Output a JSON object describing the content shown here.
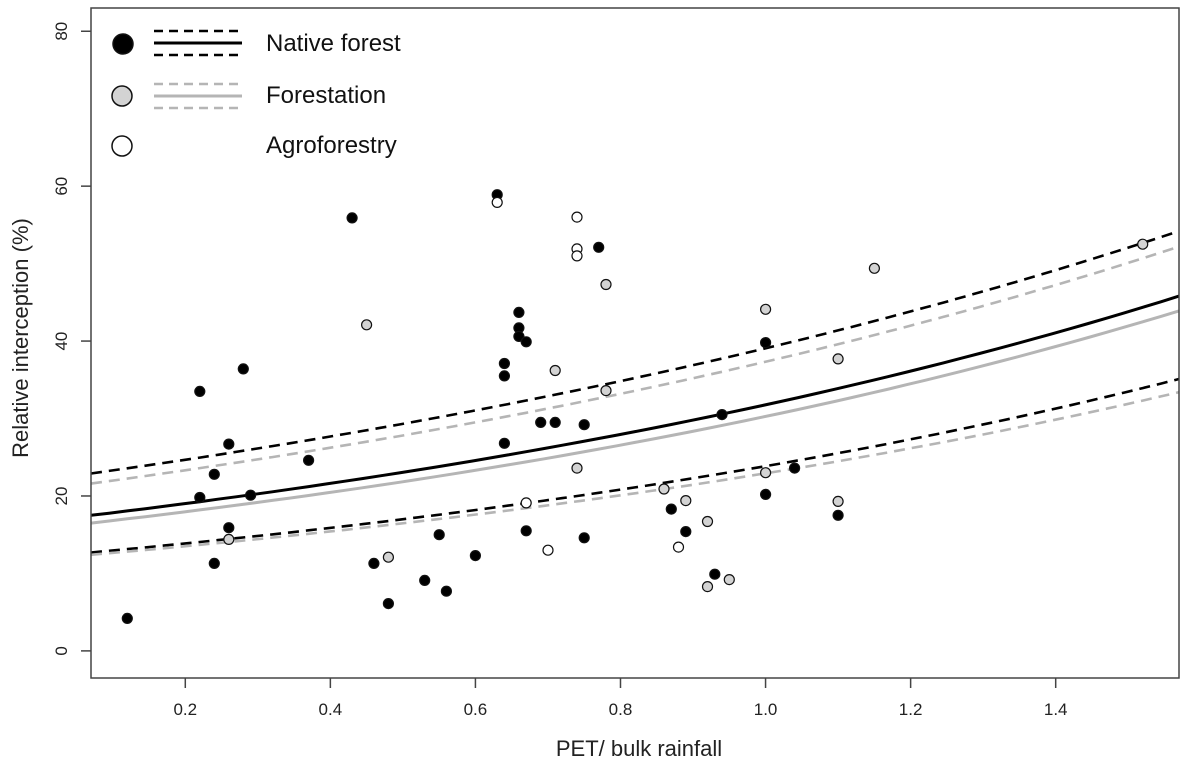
{
  "chart_data": {
    "type": "scatter",
    "title": "",
    "xlabel": "PET/ bulk rainfall",
    "ylabel": "Relative interception (%)",
    "xlim": [
      0.07,
      1.57
    ],
    "ylim": [
      -3.5,
      83
    ],
    "xticks": [
      0.2,
      0.4,
      0.6,
      0.8,
      1.0,
      1.2,
      1.4
    ],
    "xtick_labels": [
      "0.2",
      "0.4",
      "0.6",
      "0.8",
      "1.0",
      "1.2",
      "1.4"
    ],
    "yticks": [
      0,
      20,
      40,
      60,
      80
    ],
    "ytick_labels": [
      "0",
      "20",
      "40",
      "60",
      "80"
    ],
    "grid": false,
    "legend_position": "top-left",
    "colors": {
      "native": "#000000",
      "forestation_fill": "#d3d3d3",
      "forestation_line": "#b5b5b5",
      "agroforestry_fill": "#ffffff",
      "stroke": "#111111",
      "frame": "#444444"
    },
    "legend": [
      {
        "name": "Native forest",
        "marker": "filled-black",
        "lines": true,
        "line_color": "#000000"
      },
      {
        "name": "Forestation",
        "marker": "filled-grey",
        "lines": true,
        "line_color": "#b5b5b5"
      },
      {
        "name": "Agroforestry",
        "marker": "open-white",
        "lines": false
      }
    ],
    "series": [
      {
        "name": "Native forest",
        "points": [
          [
            0.12,
            4.2
          ],
          [
            0.22,
            33.5
          ],
          [
            0.22,
            19.8
          ],
          [
            0.24,
            22.8
          ],
          [
            0.24,
            11.3
          ],
          [
            0.26,
            26.7
          ],
          [
            0.26,
            15.9
          ],
          [
            0.28,
            36.4
          ],
          [
            0.29,
            20.1
          ],
          [
            0.37,
            24.6
          ],
          [
            0.43,
            55.9
          ],
          [
            0.46,
            11.3
          ],
          [
            0.48,
            6.1
          ],
          [
            0.53,
            9.1
          ],
          [
            0.55,
            15.0
          ],
          [
            0.56,
            7.7
          ],
          [
            0.6,
            12.3
          ],
          [
            0.63,
            58.9
          ],
          [
            0.64,
            37.1
          ],
          [
            0.64,
            35.5
          ],
          [
            0.64,
            26.8
          ],
          [
            0.66,
            43.7
          ],
          [
            0.66,
            41.7
          ],
          [
            0.66,
            40.6
          ],
          [
            0.67,
            39.9
          ],
          [
            0.67,
            15.5
          ],
          [
            0.69,
            29.5
          ],
          [
            0.71,
            29.5
          ],
          [
            0.75,
            29.2
          ],
          [
            0.75,
            14.6
          ],
          [
            0.77,
            52.1
          ],
          [
            0.87,
            18.3
          ],
          [
            0.89,
            15.4
          ],
          [
            0.93,
            9.9
          ],
          [
            0.94,
            30.5
          ],
          [
            1.0,
            39.8
          ],
          [
            1.0,
            20.2
          ],
          [
            1.04,
            23.6
          ],
          [
            1.1,
            17.5
          ]
        ]
      },
      {
        "name": "Forestation",
        "points": [
          [
            0.26,
            14.4
          ],
          [
            0.45,
            42.1
          ],
          [
            0.48,
            12.1
          ],
          [
            0.71,
            36.2
          ],
          [
            0.74,
            23.6
          ],
          [
            0.78,
            47.3
          ],
          [
            0.78,
            33.6
          ],
          [
            0.86,
            20.9
          ],
          [
            0.89,
            19.4
          ],
          [
            0.92,
            16.7
          ],
          [
            0.92,
            8.3
          ],
          [
            0.95,
            9.2
          ],
          [
            1.0,
            44.1
          ],
          [
            1.0,
            23.0
          ],
          [
            1.1,
            37.7
          ],
          [
            1.1,
            19.3
          ],
          [
            1.15,
            49.4
          ],
          [
            1.52,
            52.5
          ]
        ]
      },
      {
        "name": "Agroforestry",
        "points": [
          [
            0.63,
            57.9
          ],
          [
            0.67,
            19.1
          ],
          [
            0.7,
            13.0
          ],
          [
            0.74,
            56.0
          ],
          [
            0.74,
            51.9
          ],
          [
            0.74,
            51.0
          ],
          [
            0.88,
            13.4
          ]
        ]
      }
    ],
    "fits": [
      {
        "name": "Native forest",
        "role": "fit",
        "style": "solid",
        "color": "#000000",
        "x": [
          0.07,
          1.57
        ],
        "y": [
          17.5,
          45.8
        ]
      },
      {
        "name": "Native forest",
        "role": "upper",
        "style": "dashed",
        "color": "#000000",
        "x": [
          0.07,
          1.57
        ],
        "y": [
          22.9,
          54.2
        ]
      },
      {
        "name": "Native forest",
        "role": "lower",
        "style": "dashed",
        "color": "#000000",
        "x": [
          0.07,
          1.57
        ],
        "y": [
          12.7,
          35.1
        ]
      },
      {
        "name": "Forestation",
        "role": "fit",
        "style": "solid",
        "color": "#b5b5b5",
        "x": [
          0.07,
          1.57
        ],
        "y": [
          16.5,
          43.9
        ]
      },
      {
        "name": "Forestation",
        "role": "upper",
        "style": "dashed",
        "color": "#b5b5b5",
        "x": [
          0.07,
          1.57
        ],
        "y": [
          21.6,
          52.2
        ]
      },
      {
        "name": "Forestation",
        "role": "lower",
        "style": "dashed",
        "color": "#b5b5b5",
        "x": [
          0.07,
          1.57
        ],
        "y": [
          12.4,
          33.4
        ]
      }
    ]
  }
}
